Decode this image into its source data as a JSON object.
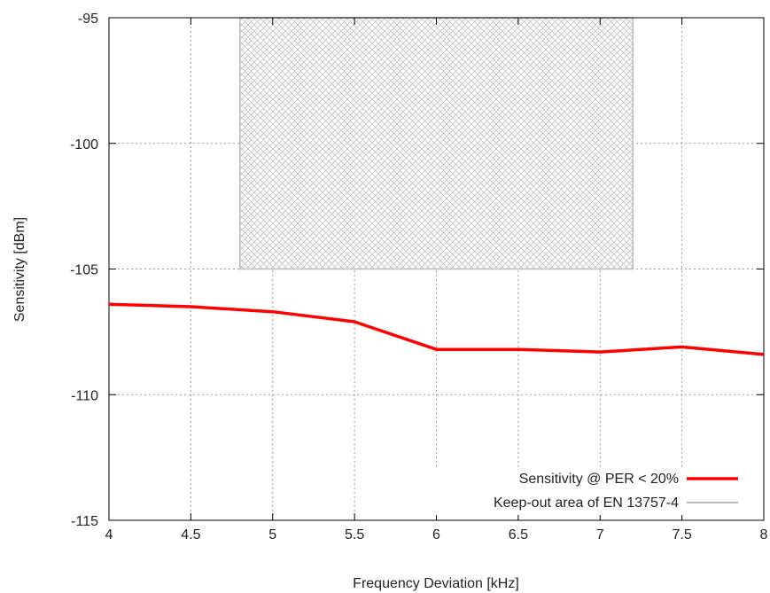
{
  "chart_data": {
    "type": "line",
    "title": "",
    "xlabel": "Frequency Deviation [kHz]",
    "ylabel": "Sensitivity [dBm]",
    "xlim": [
      4,
      8
    ],
    "ylim": [
      -115,
      -95
    ],
    "xticks": [
      "4",
      "4.5",
      "5",
      "5.5",
      "6",
      "6.5",
      "7",
      "7.5",
      "8"
    ],
    "yticks": [
      "-95",
      "-100",
      "-105",
      "-110",
      "-115"
    ],
    "grid": true,
    "legend_position": "bottom-right",
    "series": [
      {
        "name": "Sensitivity @ PER < 20%",
        "color": "#ff0000",
        "x": [
          4.0,
          4.5,
          5.0,
          5.5,
          6.0,
          6.5,
          7.0,
          7.5,
          8.0
        ],
        "y": [
          -106.4,
          -106.5,
          -106.7,
          -107.1,
          -108.2,
          -108.2,
          -108.3,
          -108.1,
          -108.4
        ]
      }
    ],
    "regions": [
      {
        "name": "Keep-out area of EN 13757-4",
        "color": "#bbbbbb",
        "x_range": [
          4.8,
          7.2
        ],
        "y_range": [
          -105,
          -95
        ]
      }
    ]
  }
}
